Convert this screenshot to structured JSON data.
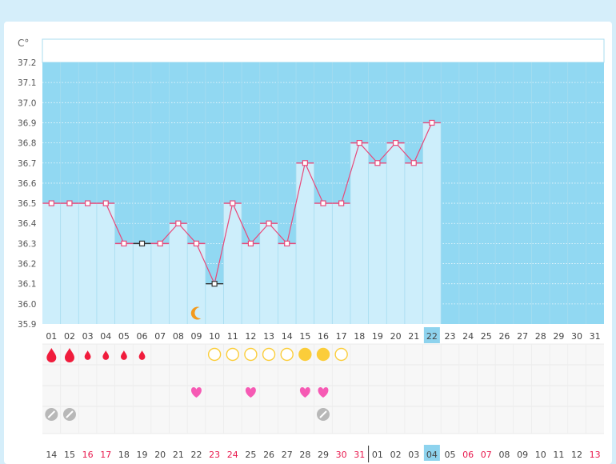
{
  "chart_data": {
    "type": "bar",
    "title": "",
    "ylabel": "C°",
    "ylim": [
      35.9,
      37.2
    ],
    "yticks": [
      "37.2",
      "37.1",
      "37.0",
      "36.9",
      "36.8",
      "36.7",
      "36.6",
      "36.5",
      "36.4",
      "36.3",
      "36.2",
      "36.1",
      "36.0",
      "35.9"
    ],
    "days": [
      "01",
      "02",
      "03",
      "04",
      "05",
      "06",
      "07",
      "08",
      "09",
      "10",
      "11",
      "12",
      "13",
      "14",
      "15",
      "16",
      "17",
      "18",
      "19",
      "20",
      "21",
      "22",
      "23",
      "24",
      "25",
      "26",
      "27",
      "28",
      "29",
      "30",
      "31"
    ],
    "temperatures": [
      36.5,
      36.5,
      36.5,
      36.5,
      36.3,
      36.3,
      36.3,
      36.4,
      36.3,
      36.1,
      36.5,
      36.3,
      36.4,
      36.3,
      36.7,
      36.5,
      36.5,
      36.8,
      36.7,
      36.8,
      36.7,
      36.9
    ],
    "marker_styles": [
      "pink",
      "pink",
      "pink",
      "pink",
      "pink",
      "dark",
      "pink",
      "pink",
      "pink",
      "dark",
      "pink",
      "pink",
      "pink",
      "pink",
      "pink",
      "pink",
      "pink",
      "pink",
      "pink",
      "pink",
      "pink",
      "pink"
    ],
    "selected_day": "22",
    "grid": true,
    "colors": {
      "background_fill": "#91d8f2",
      "bar_fill": "#cdeefb",
      "line": "#e8497a",
      "marker_pink": "#e8497a",
      "marker_dark": "#333333",
      "selected_bg": "#8ed3ee",
      "red_text": "#e8174c",
      "drop": "#f01c3c",
      "circle": "#fbcd3a",
      "heart": "#f65ab4",
      "pill": "#b8b8b8",
      "moon": "#f39a1c"
    },
    "moon_day": "09",
    "rows": {
      "period": [
        {
          "day": "01",
          "size": "large"
        },
        {
          "day": "02",
          "size": "large"
        },
        {
          "day": "03",
          "size": "small"
        },
        {
          "day": "04",
          "size": "small"
        },
        {
          "day": "05",
          "size": "small"
        },
        {
          "day": "06",
          "size": "small"
        }
      ],
      "fertile": [
        {
          "day": "10",
          "filled": false
        },
        {
          "day": "11",
          "filled": false
        },
        {
          "day": "12",
          "filled": false
        },
        {
          "day": "13",
          "filled": false
        },
        {
          "day": "14",
          "filled": false
        },
        {
          "day": "15",
          "filled": true
        },
        {
          "day": "16",
          "filled": true
        },
        {
          "day": "17",
          "filled": false
        }
      ],
      "hearts": [
        "09",
        "12",
        "15",
        "16"
      ],
      "pills": [
        "01",
        "02",
        "16"
      ]
    },
    "cycle_dates": [
      {
        "label": "14",
        "red": false
      },
      {
        "label": "15",
        "red": false
      },
      {
        "label": "16",
        "red": true
      },
      {
        "label": "17",
        "red": true
      },
      {
        "label": "18",
        "red": false
      },
      {
        "label": "19",
        "red": false
      },
      {
        "label": "20",
        "red": false
      },
      {
        "label": "21",
        "red": false
      },
      {
        "label": "22",
        "red": false
      },
      {
        "label": "23",
        "red": true
      },
      {
        "label": "24",
        "red": true
      },
      {
        "label": "25",
        "red": false
      },
      {
        "label": "26",
        "red": false
      },
      {
        "label": "27",
        "red": false
      },
      {
        "label": "28",
        "red": false
      },
      {
        "label": "29",
        "red": false
      },
      {
        "label": "30",
        "red": true
      },
      {
        "label": "31",
        "red": true
      },
      {
        "label": "01",
        "red": false
      },
      {
        "label": "02",
        "red": false
      },
      {
        "label": "03",
        "red": false
      },
      {
        "label": "04",
        "red": false,
        "selected": true
      },
      {
        "label": "05",
        "red": false
      },
      {
        "label": "06",
        "red": true
      },
      {
        "label": "07",
        "red": true
      },
      {
        "label": "08",
        "red": false
      },
      {
        "label": "09",
        "red": false
      },
      {
        "label": "10",
        "red": false
      },
      {
        "label": "11",
        "red": false
      },
      {
        "label": "12",
        "red": false
      },
      {
        "label": "13",
        "red": true
      }
    ],
    "month_divider_before": "01"
  }
}
